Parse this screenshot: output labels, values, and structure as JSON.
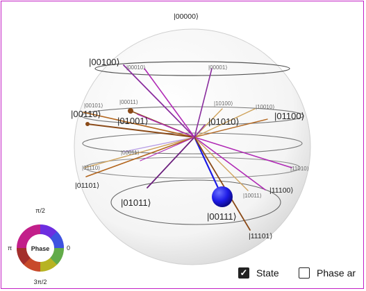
{
  "qsphere": {
    "basis_states": {
      "s00000": "|00000⟩",
      "s00100": "|00100⟩",
      "s00010": "|00010⟩",
      "s00001": "|00001⟩",
      "s00101": "|00101⟩",
      "s00011": "|00011⟩",
      "s10100": "|10100⟩",
      "s10010": "|10010⟩",
      "s00110": "|00110⟩",
      "s01001": "|01001⟩",
      "s01010": "|01010⟩",
      "s01100": "|01100⟩",
      "s00011b": "|00011⟩",
      "s01110": "|01110⟩",
      "s11010": "|11010⟩",
      "s01101": "|01101⟩",
      "s11100": "|11100⟩",
      "s01011": "|01011⟩",
      "s10011": "|10011⟩",
      "s00111": "|00111⟩",
      "s11101": "|11101⟩"
    },
    "colors": {
      "purple": "#8a2d9e",
      "magenta": "#b02ab5",
      "dark_magenta": "#6b1f7d",
      "orange_brown": "#b3661e",
      "brown": "#8a4a18",
      "tan": "#cfa35c",
      "blue": "#1d1be6",
      "lavender": "#b9a0e6"
    }
  },
  "legend": {
    "title": "Phase",
    "top": "π/2",
    "right": "0",
    "bottom": "3π/2",
    "left": "π"
  },
  "controls": {
    "state_label": "State",
    "phase_label": "Phase ar"
  }
}
